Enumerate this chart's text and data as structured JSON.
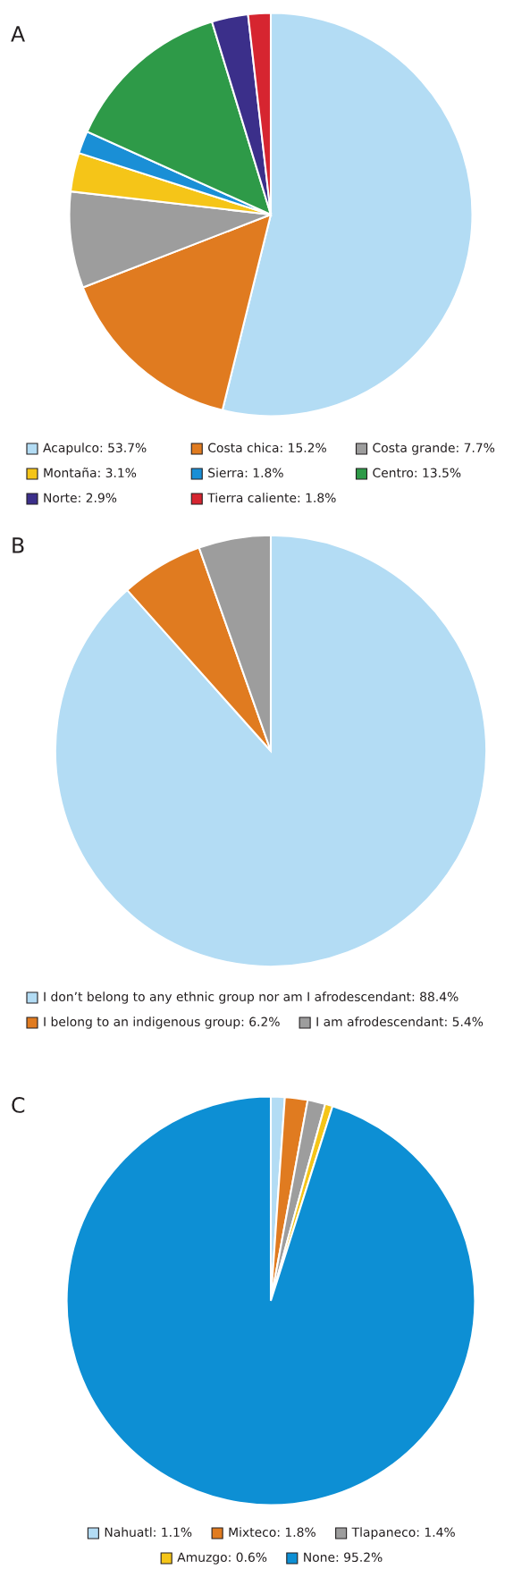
{
  "chart_data": [
    {
      "type": "pie",
      "title": "A",
      "legend": "bottom",
      "categories": [
        "Acapulco: 53.7%",
        "Costa chica: 15.2%",
        "Costa grande: 7.7%",
        "Montaña: 3.1%",
        "Sierra: 1.8%",
        "Centro: 13.5%",
        "Norte: 2.9%",
        "Tierra caliente: 1.8%"
      ],
      "values": [
        53.7,
        15.2,
        7.7,
        3.1,
        1.8,
        13.5,
        2.9,
        1.8
      ],
      "colors": [
        "#b3dcf4",
        "#e07b20",
        "#9d9d9d",
        "#f5c518",
        "#1a8fd6",
        "#2e9a48",
        "#3b2f8a",
        "#d62530"
      ]
    },
    {
      "type": "pie",
      "title": "B",
      "legend": "bottom",
      "categories": [
        "I don’t belong to any ethnic group nor am I afrodescendant: 88.4%",
        "I belong to an indigenous group: 6.2%",
        "I am afrodescendant: 5.4%"
      ],
      "values": [
        88.4,
        6.2,
        5.4
      ],
      "colors": [
        "#b3dcf4",
        "#e07b20",
        "#9d9d9d"
      ]
    },
    {
      "type": "pie",
      "title": "C",
      "legend": "bottom",
      "categories": [
        "Nahuatl: 1.1%",
        "Mixteco: 1.8%",
        "Tlapaneco: 1.4%",
        "Amuzgo: 0.6%",
        "None: 95.2%"
      ],
      "values": [
        1.1,
        1.8,
        1.4,
        0.6,
        95.2
      ],
      "colors": [
        "#b3dcf4",
        "#e07b20",
        "#9d9d9d",
        "#f5c518",
        "#0d8fd4"
      ]
    }
  ]
}
